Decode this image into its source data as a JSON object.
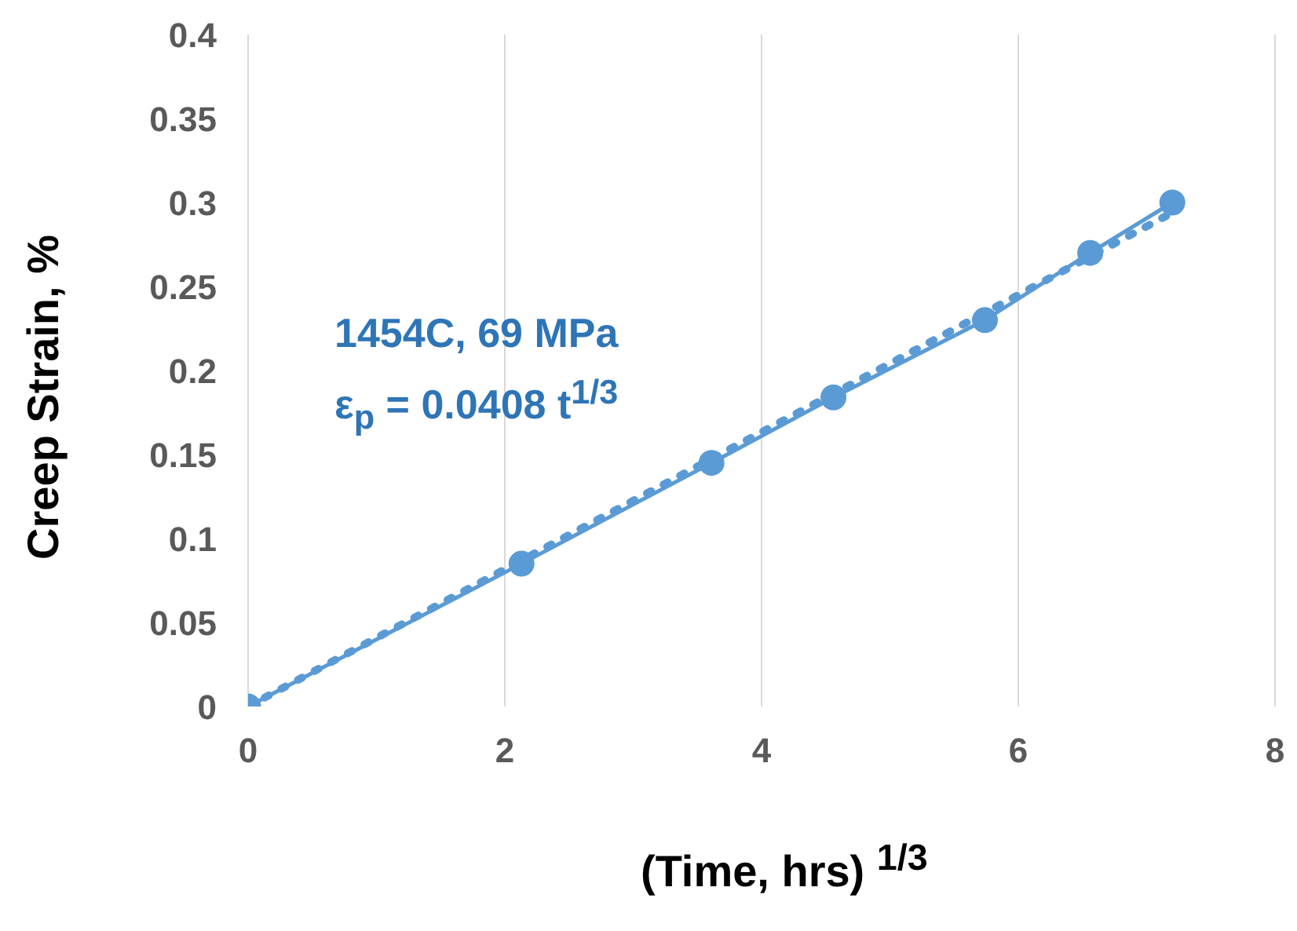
{
  "chart_data": {
    "type": "line",
    "xlabel": "(Time, hrs) $^{1/3}$",
    "ylabel": "Creep Strain, %",
    "annotations": [
      "1454C, 69 MPa",
      "ε$_{p}$ = 0.0408 t$^{1/3}$"
    ],
    "series": [
      {
        "color": "#5b9bd5",
        "x": [
          0,
          2.13,
          3.61,
          4.56,
          5.74,
          6.56,
          7.2
        ],
        "values": [
          0,
          0.085,
          0.145,
          0.184,
          0.23,
          0.27,
          0.3
        ],
        "marker": "circle",
        "line_style": "solid"
      },
      {
        "color": "#5b9bd5",
        "x": [
          0,
          7.2
        ],
        "values": [
          0,
          0.294
        ],
        "marker": "none",
        "line_style": "dotted"
      }
    ],
    "xlim": [
      0,
      8
    ],
    "xticks": [
      0,
      2,
      4,
      6,
      8
    ],
    "ylim": [
      0,
      0.4
    ],
    "yticks": [
      0,
      0.05,
      0.1,
      0.15,
      0.2,
      0.25,
      0.3,
      0.35,
      0.4
    ],
    "grid": "x"
  }
}
